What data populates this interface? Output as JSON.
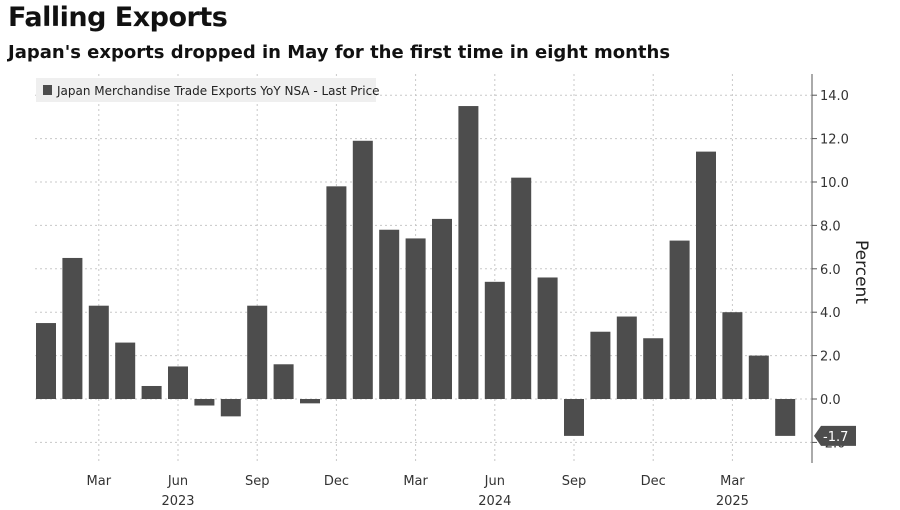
{
  "title": "Falling Exports",
  "subtitle": "Japan's exports dropped in May for the first time in eight months",
  "chart_data": {
    "type": "bar",
    "legend": "Japan Merchandise Trade Exports YoY NSA - Last Price",
    "legend_position": "top-left",
    "ylabel": "Percent",
    "ylim": [
      -3,
      15
    ],
    "yticks": [
      -2.0,
      0.0,
      2.0,
      4.0,
      6.0,
      8.0,
      10.0,
      12.0,
      14.0
    ],
    "ytick_labels": [
      "-2.0",
      "0.0",
      "2.0",
      "4.0",
      "6.0",
      "8.0",
      "10.0",
      "12.0",
      "14.0"
    ],
    "grid": true,
    "bar_color": "#4d4d4d",
    "categories": [
      "Jan 2023",
      "Feb 2023",
      "Mar 2023",
      "Apr 2023",
      "May 2023",
      "Jun 2023",
      "Jul 2023",
      "Aug 2023",
      "Sep 2023",
      "Oct 2023",
      "Nov 2023",
      "Dec 2023",
      "Jan 2024",
      "Feb 2024",
      "Mar 2024",
      "Apr 2024",
      "May 2024",
      "Jun 2024",
      "Jul 2024",
      "Aug 2024",
      "Sep 2024",
      "Oct 2024",
      "Nov 2024",
      "Dec 2024",
      "Jan 2025",
      "Feb 2025",
      "Mar 2025",
      "Apr 2025",
      "May 2025"
    ],
    "values": [
      3.5,
      6.5,
      4.3,
      2.6,
      0.6,
      1.5,
      -0.3,
      -0.8,
      4.3,
      1.6,
      -0.2,
      9.8,
      11.9,
      7.8,
      7.4,
      8.3,
      13.5,
      5.4,
      10.2,
      5.6,
      -1.7,
      3.1,
      3.8,
      2.8,
      7.3,
      11.4,
      4.0,
      2.0,
      -1.7
    ],
    "x_tick_labels": [
      {
        "index": 2,
        "label": "Mar"
      },
      {
        "index": 5,
        "label": "Jun"
      },
      {
        "index": 8,
        "label": "Sep"
      },
      {
        "index": 11,
        "label": "Dec"
      },
      {
        "index": 14,
        "label": "Mar"
      },
      {
        "index": 17,
        "label": "Jun"
      },
      {
        "index": 20,
        "label": "Sep"
      },
      {
        "index": 23,
        "label": "Dec"
      },
      {
        "index": 26,
        "label": "Mar"
      }
    ],
    "year_labels": [
      {
        "index": 5,
        "label": "2023"
      },
      {
        "index": 17,
        "label": "2024"
      },
      {
        "index": 26,
        "label": "2025"
      }
    ],
    "last_value_label": "-1.7"
  }
}
